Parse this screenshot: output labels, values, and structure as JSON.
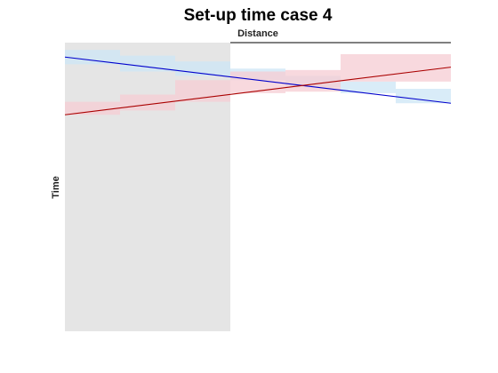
{
  "chart_data": {
    "type": "line",
    "title": "Set-up time case 4",
    "xlabel": "Distance",
    "ylabel": "Time",
    "xlim": [
      0,
      7
    ],
    "ylim": [
      0,
      1
    ],
    "grid": false,
    "legend": "none",
    "shaded_region": {
      "x_start": 0,
      "x_end": 3,
      "color": "#e5e5e5"
    },
    "series": [
      {
        "color": "#0000cc",
        "band_color": "#cce6f5",
        "fit_line": {
          "x": [
            0,
            7
          ],
          "y": [
            0.95,
            0.79
          ]
        },
        "bands": [
          {
            "x0": 0,
            "x1": 1,
            "lo": 0.925,
            "hi": 0.975
          },
          {
            "x0": 1,
            "x1": 2,
            "lo": 0.9,
            "hi": 0.955
          },
          {
            "x0": 2,
            "x1": 3,
            "lo": 0.885,
            "hi": 0.935
          },
          {
            "x0": 3,
            "x1": 4,
            "lo": 0.87,
            "hi": 0.91
          },
          {
            "x0": 4,
            "x1": 5,
            "lo": 0.845,
            "hi": 0.885
          },
          {
            "x0": 5,
            "x1": 6,
            "lo": 0.825,
            "hi": 0.865
          },
          {
            "x0": 6,
            "x1": 7,
            "lo": 0.79,
            "hi": 0.84
          }
        ]
      },
      {
        "color": "#aa0000",
        "band_color": "#f5ccd3",
        "fit_line": {
          "x": [
            0,
            7
          ],
          "y": [
            0.75,
            0.915
          ]
        },
        "bands": [
          {
            "x0": 0,
            "x1": 1,
            "lo": 0.75,
            "hi": 0.795
          },
          {
            "x0": 1,
            "x1": 2,
            "lo": 0.765,
            "hi": 0.82
          },
          {
            "x0": 2,
            "x1": 3,
            "lo": 0.795,
            "hi": 0.87
          },
          {
            "x0": 3,
            "x1": 4,
            "lo": 0.825,
            "hi": 0.9
          },
          {
            "x0": 4,
            "x1": 5,
            "lo": 0.83,
            "hi": 0.905
          },
          {
            "x0": 5,
            "x1": 6,
            "lo": 0.865,
            "hi": 0.96
          },
          {
            "x0": 6,
            "x1": 7,
            "lo": 0.865,
            "hi": 0.96
          }
        ]
      }
    ]
  }
}
